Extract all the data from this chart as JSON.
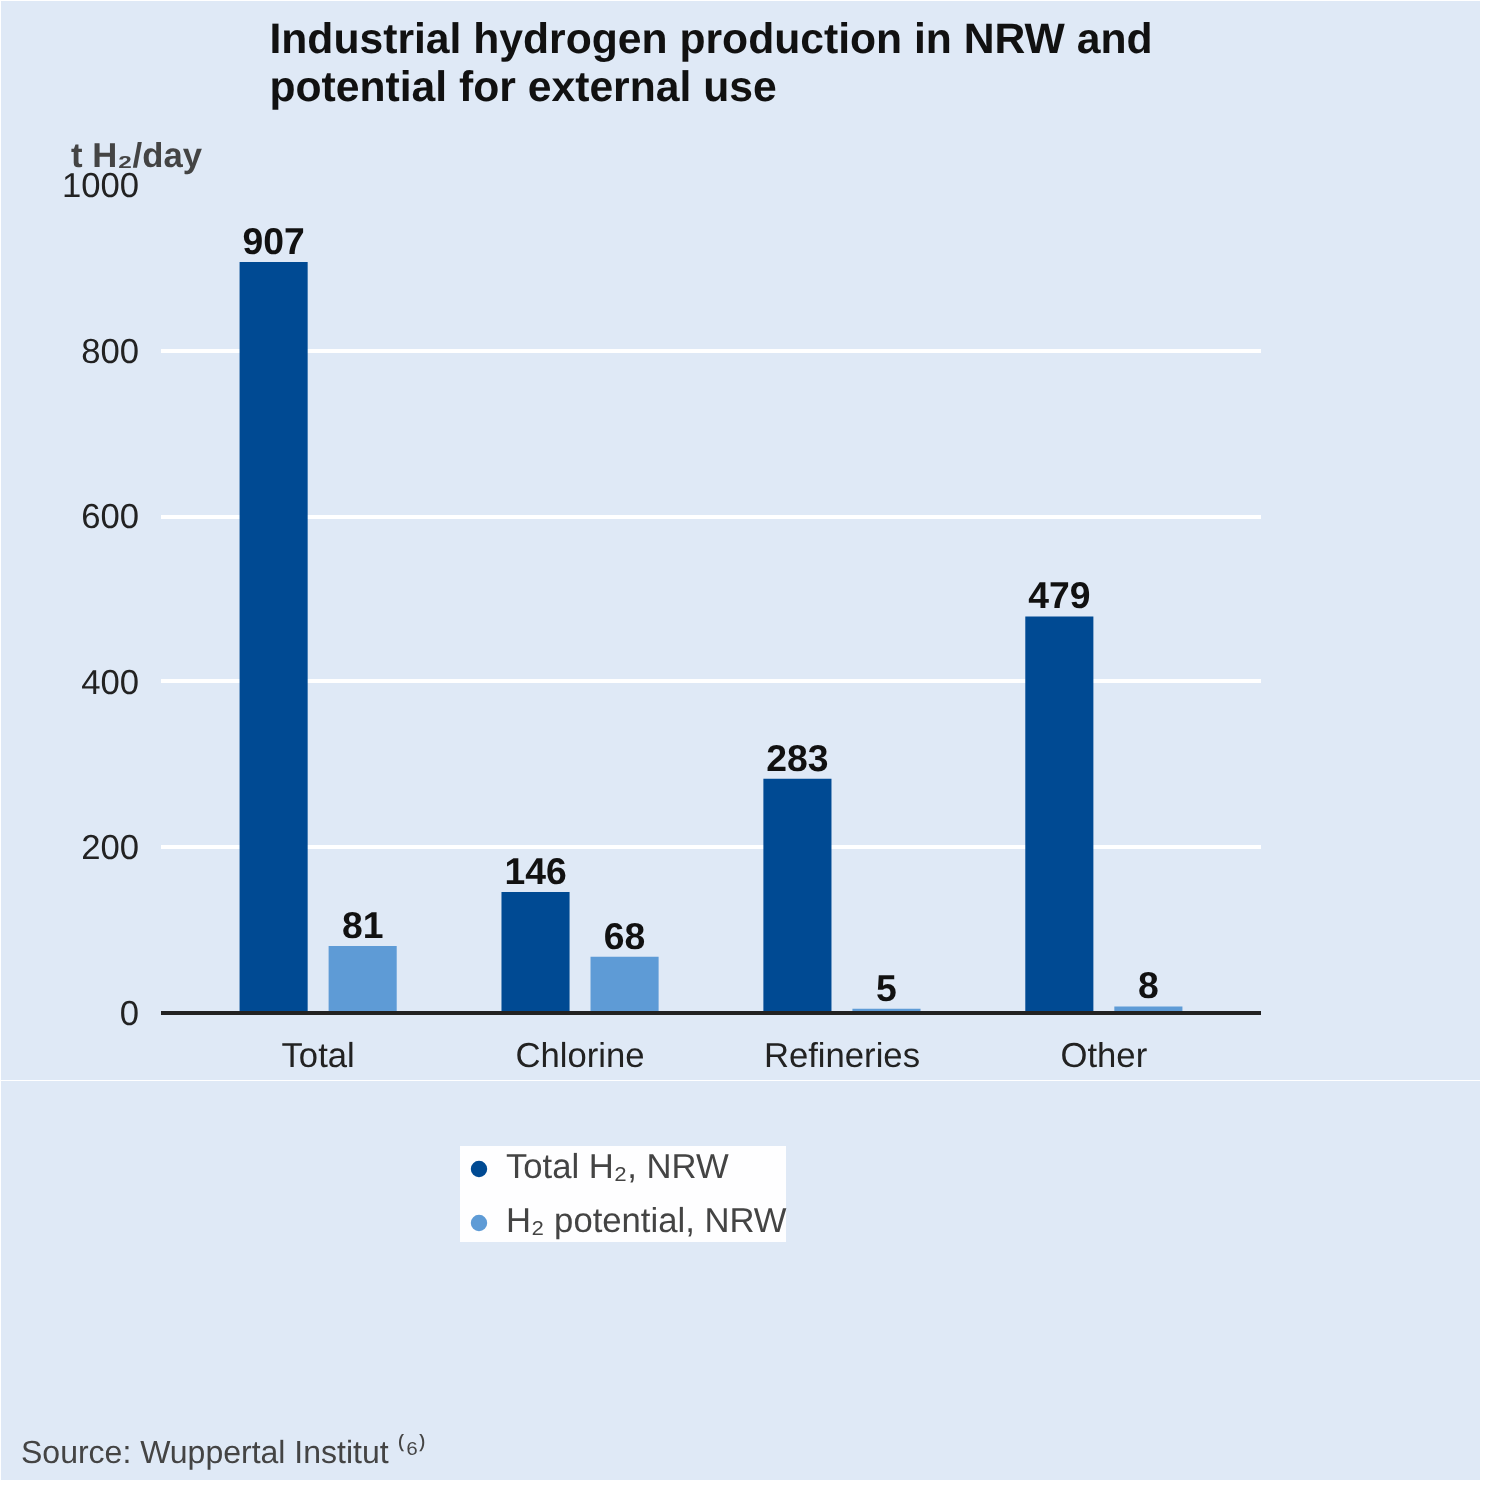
{
  "chart_data": {
    "type": "bar",
    "title": "Industrial hydrogen production in NRW and\npotential for external use",
    "ylabel": "t H₂/day",
    "categories": [
      "Total",
      "Chlorine",
      "Refineries",
      "Other"
    ],
    "series": [
      {
        "name": "Total H₂, NRW",
        "color": "#004a93",
        "values": [
          907,
          146,
          283,
          479
        ]
      },
      {
        "name": "H₂ potential, NRW",
        "color": "#5e9bd6",
        "values": [
          81,
          68,
          5,
          8
        ]
      }
    ],
    "ylim": [
      0,
      1000
    ],
    "yticks": [
      0,
      200,
      400,
      600,
      800,
      1000
    ],
    "grid": "y",
    "legend": "bottom",
    "data_labels": true,
    "annotations": [
      "Source: Wuppertal Institut ⁽⁶⁾"
    ]
  }
}
